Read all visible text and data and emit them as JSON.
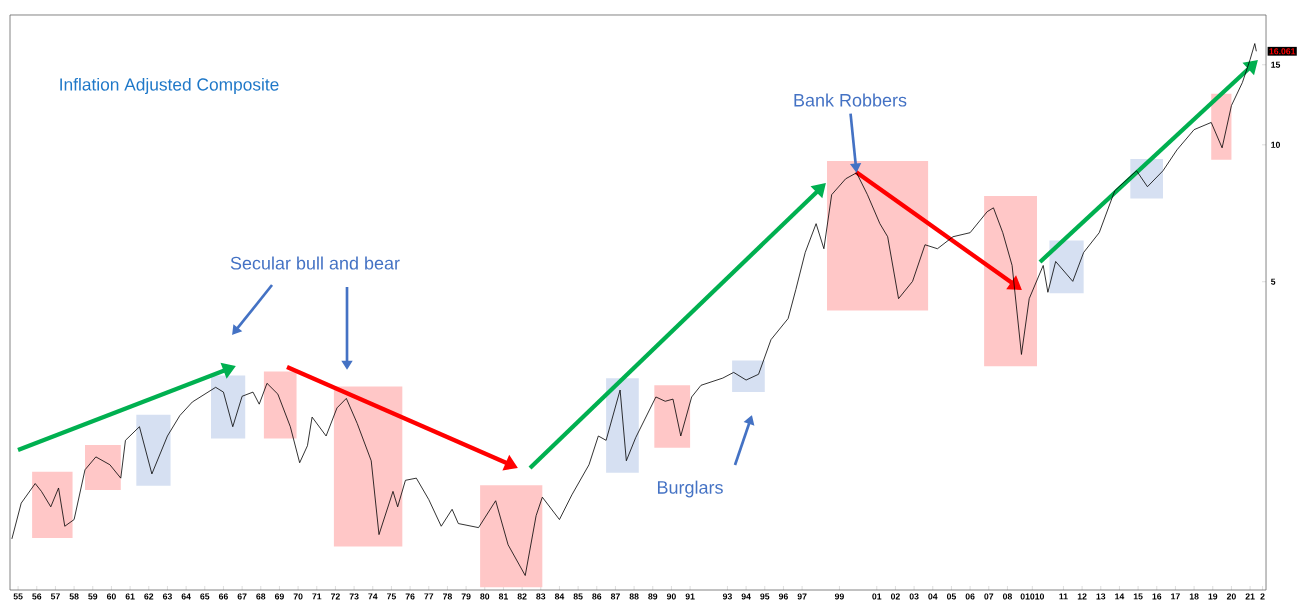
{
  "chart_data": {
    "type": "line",
    "title": "Inflation Adjusted Composite",
    "log": "y",
    "xlim": [
      "1955-01-25",
      "2022-05-08"
    ],
    "ylim": [
      1.05,
      19.3
    ],
    "xticks": [
      {
        "value": "1955-07",
        "label": "55"
      },
      {
        "value": "1956-07",
        "label": "56"
      },
      {
        "value": "1957-07",
        "label": "57"
      },
      {
        "value": "1958-07",
        "label": "58"
      },
      {
        "value": "1959-07",
        "label": "59"
      },
      {
        "value": "1960-07",
        "label": "60"
      },
      {
        "value": "1961-07",
        "label": "61"
      },
      {
        "value": "1962-07",
        "label": "62"
      },
      {
        "value": "1963-07",
        "label": "63"
      },
      {
        "value": "1964-07",
        "label": "64"
      },
      {
        "value": "1965-07",
        "label": "65"
      },
      {
        "value": "1966-07",
        "label": "66"
      },
      {
        "value": "1967-07",
        "label": "67"
      },
      {
        "value": "1968-07",
        "label": "68"
      },
      {
        "value": "1969-07",
        "label": "69"
      },
      {
        "value": "1970-07",
        "label": "70"
      },
      {
        "value": "1971-07",
        "label": "71"
      },
      {
        "value": "1972-07",
        "label": "72"
      },
      {
        "value": "1973-07",
        "label": "73"
      },
      {
        "value": "1974-07",
        "label": "74"
      },
      {
        "value": "1975-07",
        "label": "75"
      },
      {
        "value": "1976-07",
        "label": "76"
      },
      {
        "value": "1977-07",
        "label": "77"
      },
      {
        "value": "1978-07",
        "label": "78"
      },
      {
        "value": "1979-07",
        "label": "79"
      },
      {
        "value": "1980-07",
        "label": "80"
      },
      {
        "value": "1981-07",
        "label": "81"
      },
      {
        "value": "1982-07",
        "label": "82"
      },
      {
        "value": "1983-07",
        "label": "83"
      },
      {
        "value": "1984-07",
        "label": "84"
      },
      {
        "value": "1985-07",
        "label": "85"
      },
      {
        "value": "1986-07",
        "label": "86"
      },
      {
        "value": "1987-07",
        "label": "87"
      },
      {
        "value": "1988-07",
        "label": "88"
      },
      {
        "value": "1989-07",
        "label": "89"
      },
      {
        "value": "1990-07",
        "label": "90"
      },
      {
        "value": "1991-07",
        "label": "91"
      },
      {
        "value": "1993-07",
        "label": "93"
      },
      {
        "value": "1994-07",
        "label": "94"
      },
      {
        "value": "1995-07",
        "label": "95"
      },
      {
        "value": "1996-07",
        "label": "96"
      },
      {
        "value": "1997-07",
        "label": "97"
      },
      {
        "value": "1999-07",
        "label": "99"
      },
      {
        "value": "2001-07",
        "label": "01"
      },
      {
        "value": "2002-07",
        "label": "02"
      },
      {
        "value": "2003-07",
        "label": "03"
      },
      {
        "value": "2004-07",
        "label": "04"
      },
      {
        "value": "2005-07",
        "label": "05"
      },
      {
        "value": "2006-07",
        "label": "06"
      },
      {
        "value": "2007-07",
        "label": "07"
      },
      {
        "value": "2008-07",
        "label": "08"
      },
      {
        "value": "2009-11",
        "label": "01010"
      },
      {
        "value": "2011-07",
        "label": "11"
      },
      {
        "value": "2012-07",
        "label": "12"
      },
      {
        "value": "2013-07",
        "label": "13"
      },
      {
        "value": "2014-07",
        "label": "14"
      },
      {
        "value": "2015-07",
        "label": "15"
      },
      {
        "value": "2016-07",
        "label": "16"
      },
      {
        "value": "2017-07",
        "label": "17"
      },
      {
        "value": "2018-07",
        "label": "18"
      },
      {
        "value": "2019-07",
        "label": "19"
      },
      {
        "value": "2020-07",
        "label": "20"
      },
      {
        "value": "2021-07",
        "label": "21"
      },
      {
        "value": "2022-03",
        "label": "2"
      }
    ],
    "yticks": [
      5,
      10,
      15
    ],
    "series": [
      {
        "color": "#000000",
        "x": [
          "1955-03",
          "1955-09",
          "1956-06",
          "1956-10",
          "1957-04",
          "1957-09",
          "1958-01",
          "1958-07",
          "1959-02",
          "1959-09",
          "1960-06",
          "1961-01",
          "1961-04",
          "1962-01",
          "1962-09",
          "1963-07",
          "1964-03",
          "1964-11",
          "1966-02",
          "1966-07",
          "1967-01",
          "1967-07",
          "1968-02",
          "1968-06",
          "1968-11",
          "1969-06",
          "1970-02",
          "1970-08",
          "1971-01",
          "1971-04",
          "1972-01",
          "1972-08",
          "1973-02",
          "1973-09",
          "1974-06",
          "1974-11",
          "1975-08",
          "1975-11",
          "1976-04",
          "1976-11",
          "1977-07",
          "1978-03",
          "1978-10",
          "1979-02",
          "1980-03",
          "1981-02",
          "1981-10",
          "1982-09",
          "1983-04",
          "1983-08",
          "1984-07",
          "1985-03",
          "1986-02",
          "1986-08",
          "1987-01",
          "1987-10",
          "1988-02",
          "1988-08",
          "1989-09",
          "1990-03",
          "1990-08",
          "1991-01",
          "1991-08",
          "1992-02",
          "1993-04",
          "1993-11",
          "1994-07",
          "1995-03",
          "1995-11",
          "1996-10",
          "1997-03",
          "1997-09",
          "1998-04",
          "1998-09",
          "1999-02",
          "1999-11",
          "2000-06",
          "2001-01",
          "2001-09",
          "2002-02",
          "2002-09",
          "2003-06",
          "2004-02",
          "2004-10",
          "2005-08",
          "2006-07",
          "2007-06",
          "2007-10",
          "2008-04",
          "2008-10",
          "2009-04",
          "2009-09",
          "2010-06",
          "2010-09",
          "2011-02",
          "2012-01",
          "2012-08",
          "2013-06",
          "2014-04",
          "2015-06",
          "2016-01",
          "2016-11",
          "2017-08",
          "2018-07",
          "2019-06",
          "2020-01",
          "2020-07",
          "2021-02",
          "2021-07",
          "2021-10",
          "2021-11"
        ],
        "values": [
          1.36,
          1.63,
          1.8,
          1.73,
          1.6,
          1.76,
          1.45,
          1.5,
          1.93,
          2.06,
          1.98,
          1.85,
          2.24,
          2.4,
          1.89,
          2.29,
          2.54,
          2.72,
          2.93,
          2.86,
          2.4,
          2.8,
          2.86,
          2.69,
          2.99,
          2.83,
          2.4,
          2.0,
          2.18,
          2.52,
          2.29,
          2.64,
          2.77,
          2.44,
          2.02,
          1.39,
          1.73,
          1.6,
          1.83,
          1.85,
          1.66,
          1.45,
          1.58,
          1.47,
          1.44,
          1.65,
          1.32,
          1.13,
          1.53,
          1.68,
          1.5,
          1.7,
          1.98,
          2.29,
          2.24,
          2.89,
          2.02,
          2.27,
          2.79,
          2.73,
          2.76,
          2.29,
          2.79,
          2.96,
          3.07,
          3.16,
          3.04,
          3.13,
          3.73,
          4.15,
          4.81,
          5.8,
          6.71,
          5.91,
          7.77,
          8.42,
          8.68,
          7.77,
          6.71,
          6.28,
          4.59,
          5.01,
          6.03,
          5.91,
          6.28,
          6.41,
          7.13,
          7.27,
          6.41,
          5.43,
          3.46,
          4.59,
          5.43,
          4.74,
          5.54,
          5.01,
          5.8,
          6.41,
          7.93,
          8.77,
          8.09,
          8.77,
          9.75,
          10.8,
          11.2,
          9.85,
          12.2,
          13.7,
          15.4,
          16.7,
          16.061
        ]
      }
    ],
    "bands": [
      {
        "axis": "x",
        "from": "1956-04",
        "to": "1958-06",
        "color": "#ffc7c7"
      },
      {
        "axis": "x",
        "from": "1959-02",
        "to": "1961-01",
        "color": "#ffc7c7"
      },
      {
        "axis": "x",
        "from": "1961-11",
        "to": "1963-09",
        "color": "#d6e0f2"
      },
      {
        "axis": "x",
        "from": "1965-11",
        "to": "1967-09",
        "color": "#d6e0f2"
      },
      {
        "axis": "x",
        "from": "1968-09",
        "to": "1970-06",
        "color": "#ffc7c7"
      },
      {
        "axis": "x",
        "from": "1972-06",
        "to": "1976-02",
        "color": "#ffc7c7"
      },
      {
        "axis": "x",
        "from": "1980-04",
        "to": "1983-08",
        "color": "#ffc7c7"
      },
      {
        "axis": "x",
        "from": "1987-01",
        "to": "1988-10",
        "color": "#d6e0f2"
      },
      {
        "axis": "x",
        "from": "1989-08",
        "to": "1991-07",
        "color": "#ffc7c7"
      },
      {
        "axis": "x",
        "from": "1993-10",
        "to": "1995-07",
        "color": "#d6e0f2"
      },
      {
        "axis": "x",
        "from": "1998-11",
        "to": "2004-04",
        "color": "#ffc7c7"
      },
      {
        "axis": "x",
        "from": "2007-04",
        "to": "2010-02",
        "color": "#ffc7c7"
      },
      {
        "axis": "x",
        "from": "2010-10",
        "to": "2012-08",
        "color": "#d6e0f2"
      },
      {
        "axis": "x",
        "from": "2015-02",
        "to": "2016-11",
        "color": "#d6e0f2"
      },
      {
        "axis": "x",
        "from": "2019-06",
        "to": "2020-07",
        "color": "#ffc7c7"
      }
    ],
    "annotations": [
      "Secular bull and bear",
      {
        "text": "Bank Robbers",
        "x": "2000-06",
        "y": 8.68
      },
      "Burglars",
      {
        "text": "16.061",
        "x": "2021-11",
        "y": 16.061
      }
    ]
  }
}
